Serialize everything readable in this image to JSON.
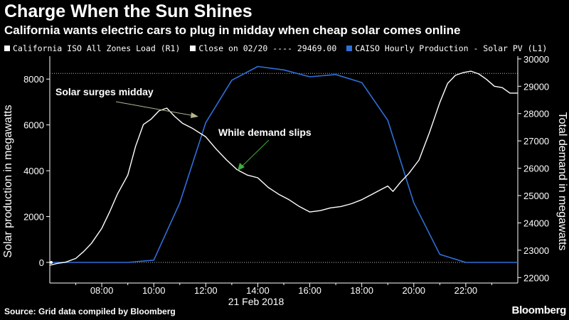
{
  "title": "Charge When the Sun Shines",
  "subtitle": "California wants electric cars to plug in midday when cheap solar comes online",
  "legend": {
    "load": "California ISO All Zones Load  (R1)",
    "close": "Close on 02/20 ---- 29469.00",
    "solar": "CAISO Hourly Production - Solar PV  (L1)"
  },
  "source": "Source: Grid data compiled by Bloomberg",
  "brand": "Bloomberg",
  "colors": {
    "background": "#000000",
    "load": "#ffffff",
    "solar": "#2f6fd8",
    "grid": "#bfbfbf",
    "annotation_arrow_1": "#b5b58f",
    "annotation_arrow_2": "#3fae3f"
  },
  "chart_data": {
    "type": "line",
    "xlabel": "21 Feb 2018",
    "x_ticks": [
      "08:00",
      "10:00",
      "12:00",
      "14:00",
      "16:00",
      "18:00",
      "20:00",
      "22:00"
    ],
    "xlim": [
      6.0,
      24.0
    ],
    "left_axis": {
      "label": "Solar production in megawatts",
      "ticks": [
        "0",
        "2000",
        "4000",
        "6000",
        "8000"
      ],
      "ylim": [
        -900,
        9000
      ]
    },
    "right_axis": {
      "label": "Total demand in megawatts",
      "ticks": [
        "22000",
        "23000",
        "24000",
        "25000",
        "26000",
        "27000",
        "28000",
        "29000",
        "30000"
      ],
      "ylim": [
        21800,
        30100
      ]
    },
    "reference_lines": [
      {
        "axis": "left",
        "value": 0
      },
      {
        "axis": "right",
        "value": 29469
      }
    ],
    "annotations": [
      "Solar surges midday",
      "While demand slips"
    ],
    "series": [
      {
        "name": "CAISO Hourly Production - Solar PV",
        "axis": "left",
        "x": [
          6,
          7,
          8,
          9,
          10,
          11,
          12,
          13,
          14,
          15,
          16,
          17,
          18,
          19,
          20,
          21,
          22,
          23,
          24
        ],
        "values": [
          0,
          0,
          0,
          0,
          100,
          2600,
          6100,
          7950,
          8550,
          8400,
          8100,
          8200,
          7850,
          6200,
          2600,
          350,
          0,
          0,
          0
        ]
      },
      {
        "name": "California ISO All Zones Load",
        "axis": "right",
        "x": [
          6.0,
          6.3,
          6.6,
          7.0,
          7.3,
          7.6,
          8.0,
          8.3,
          8.6,
          9.0,
          9.3,
          9.6,
          9.9,
          10.2,
          10.5,
          10.8,
          11.1,
          11.5,
          12.0,
          12.4,
          12.8,
          13.2,
          13.6,
          14.0,
          14.4,
          14.8,
          15.2,
          15.6,
          16.0,
          16.4,
          16.8,
          17.2,
          17.6,
          18.0,
          18.4,
          18.7,
          19.0,
          19.2,
          19.5,
          19.8,
          20.2,
          20.6,
          21.0,
          21.3,
          21.6,
          21.9,
          22.2,
          22.5,
          22.8,
          23.1,
          23.4,
          23.7,
          24.0
        ],
        "values": [
          22450,
          22520,
          22560,
          22700,
          22950,
          23250,
          23800,
          24400,
          25050,
          25750,
          26800,
          27600,
          27800,
          28100,
          28200,
          27900,
          27650,
          27450,
          27150,
          26700,
          26300,
          25950,
          25750,
          25650,
          25300,
          25050,
          24850,
          24600,
          24400,
          24450,
          24550,
          24600,
          24700,
          24850,
          25050,
          25200,
          25350,
          25150,
          25500,
          25800,
          26300,
          27300,
          28400,
          29100,
          29400,
          29500,
          29550,
          29450,
          29250,
          29000,
          28950,
          28750,
          28750
        ]
      }
    ]
  }
}
